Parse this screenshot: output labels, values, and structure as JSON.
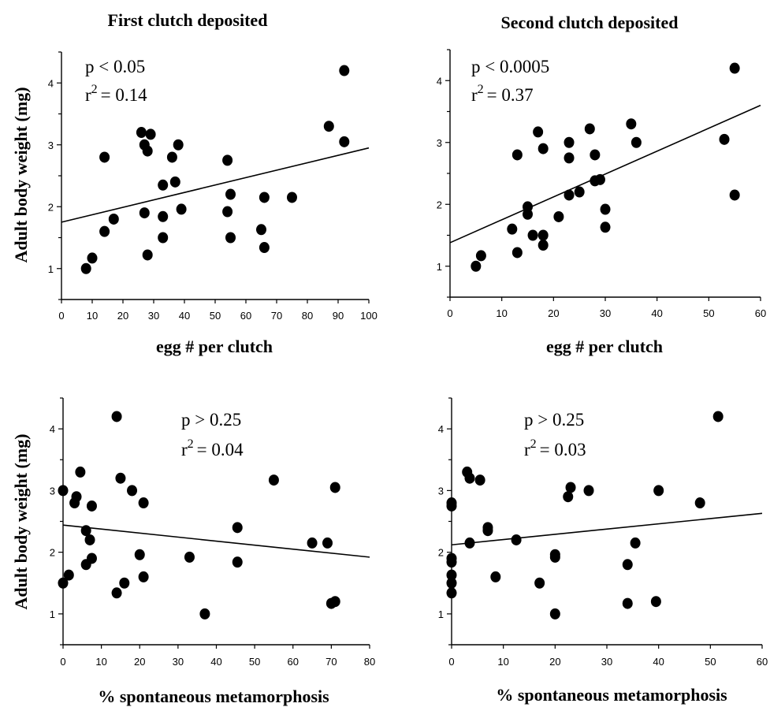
{
  "figure": {
    "ylabel_top": "Adult body weight (mg)",
    "ylabel_bottom": "Adult body weight (mg)"
  },
  "chart_data": [
    {
      "type": "scatter",
      "title": "First clutch deposited",
      "xlabel": "egg # per clutch",
      "ylabel": "Adult body weight (mg)",
      "xlim": [
        0,
        100
      ],
      "ylim": [
        0.5,
        4.5
      ],
      "xticks": [
        "0",
        "10",
        "20",
        "30",
        "40",
        "50",
        "60",
        "70",
        "80",
        "90",
        "100"
      ],
      "yticks": [
        "1",
        "2",
        "3",
        "4"
      ],
      "stats": {
        "p": "p < 0.05",
        "r2_prefix": "r",
        "r2_sup": "2",
        "r2_value": "= 0.14"
      },
      "trend": {
        "x": [
          0,
          100
        ],
        "y": [
          1.75,
          2.95
        ]
      },
      "points": [
        {
          "x": 8,
          "y": 1.0
        },
        {
          "x": 10,
          "y": 1.17
        },
        {
          "x": 14,
          "y": 2.8
        },
        {
          "x": 14,
          "y": 1.6
        },
        {
          "x": 17,
          "y": 1.8
        },
        {
          "x": 26,
          "y": 3.2
        },
        {
          "x": 27,
          "y": 3.0
        },
        {
          "x": 27,
          "y": 1.9
        },
        {
          "x": 28,
          "y": 2.9
        },
        {
          "x": 28,
          "y": 1.22
        },
        {
          "x": 29,
          "y": 3.17
        },
        {
          "x": 33,
          "y": 2.35
        },
        {
          "x": 33,
          "y": 1.84
        },
        {
          "x": 33,
          "y": 1.5
        },
        {
          "x": 36,
          "y": 2.8
        },
        {
          "x": 37,
          "y": 2.4
        },
        {
          "x": 38,
          "y": 3.0
        },
        {
          "x": 39,
          "y": 1.96
        },
        {
          "x": 54,
          "y": 2.75
        },
        {
          "x": 54,
          "y": 1.92
        },
        {
          "x": 55,
          "y": 2.2
        },
        {
          "x": 55,
          "y": 1.5
        },
        {
          "x": 65,
          "y": 1.63
        },
        {
          "x": 66,
          "y": 2.15
        },
        {
          "x": 66,
          "y": 1.34
        },
        {
          "x": 75,
          "y": 2.15
        },
        {
          "x": 87,
          "y": 3.3
        },
        {
          "x": 92,
          "y": 4.2
        },
        {
          "x": 92,
          "y": 3.05
        }
      ]
    },
    {
      "type": "scatter",
      "title": "Second clutch deposited",
      "xlabel": "egg # per clutch",
      "ylabel": "Adult body weight (mg)",
      "xlim": [
        0,
        60
      ],
      "ylim": [
        0.5,
        4.5
      ],
      "xticks": [
        "0",
        "10",
        "20",
        "30",
        "40",
        "50",
        "60"
      ],
      "yticks": [
        "1",
        "2",
        "3",
        "4"
      ],
      "stats": {
        "p": "p < 0.0005",
        "r2_prefix": "r",
        "r2_sup": "2",
        "r2_value": "= 0.37"
      },
      "trend": {
        "x": [
          0,
          60
        ],
        "y": [
          1.38,
          3.6
        ]
      },
      "points": [
        {
          "x": 5,
          "y": 1.0
        },
        {
          "x": 6,
          "y": 1.17
        },
        {
          "x": 12,
          "y": 1.6
        },
        {
          "x": 13,
          "y": 2.8
        },
        {
          "x": 13,
          "y": 1.22
        },
        {
          "x": 15,
          "y": 1.96
        },
        {
          "x": 15,
          "y": 1.84
        },
        {
          "x": 16,
          "y": 1.5
        },
        {
          "x": 17,
          "y": 3.17
        },
        {
          "x": 18,
          "y": 2.9
        },
        {
          "x": 18,
          "y": 1.5
        },
        {
          "x": 18,
          "y": 1.34
        },
        {
          "x": 21,
          "y": 1.8
        },
        {
          "x": 23,
          "y": 3.0
        },
        {
          "x": 23,
          "y": 2.75
        },
        {
          "x": 23,
          "y": 2.15
        },
        {
          "x": 25,
          "y": 2.2
        },
        {
          "x": 27,
          "y": 3.22
        },
        {
          "x": 28,
          "y": 2.8
        },
        {
          "x": 28,
          "y": 2.38
        },
        {
          "x": 29,
          "y": 2.4
        },
        {
          "x": 30,
          "y": 1.92
        },
        {
          "x": 30,
          "y": 1.63
        },
        {
          "x": 35,
          "y": 3.3
        },
        {
          "x": 36,
          "y": 3.0
        },
        {
          "x": 53,
          "y": 3.05
        },
        {
          "x": 55,
          "y": 4.2
        },
        {
          "x": 55,
          "y": 2.15
        }
      ]
    },
    {
      "type": "scatter",
      "title": "",
      "xlabel": "% spontaneous  metamorphosis",
      "ylabel": "Adult body weight (mg)",
      "xlim": [
        0,
        80
      ],
      "ylim": [
        0.5,
        4.5
      ],
      "xticks": [
        "0",
        "10",
        "20",
        "30",
        "40",
        "50",
        "60",
        "70",
        "80"
      ],
      "yticks": [
        "1",
        "2",
        "3",
        "4"
      ],
      "stats": {
        "p": "p > 0.25",
        "r2_prefix": "r",
        "r2_sup": "2",
        "r2_value": "= 0.04"
      },
      "trend": {
        "x": [
          0,
          80
        ],
        "y": [
          2.44,
          1.92
        ]
      },
      "points": [
        {
          "x": 0,
          "y": 3.0
        },
        {
          "x": 0,
          "y": 1.5
        },
        {
          "x": 1.5,
          "y": 1.63
        },
        {
          "x": 3,
          "y": 2.8
        },
        {
          "x": 3.5,
          "y": 2.9
        },
        {
          "x": 4.5,
          "y": 3.3
        },
        {
          "x": 6,
          "y": 2.35
        },
        {
          "x": 6,
          "y": 1.8
        },
        {
          "x": 7,
          "y": 2.2
        },
        {
          "x": 7.5,
          "y": 2.75
        },
        {
          "x": 7.5,
          "y": 1.9
        },
        {
          "x": 14,
          "y": 4.2
        },
        {
          "x": 14,
          "y": 1.34
        },
        {
          "x": 15,
          "y": 3.2
        },
        {
          "x": 16,
          "y": 1.5
        },
        {
          "x": 18,
          "y": 3.0
        },
        {
          "x": 20,
          "y": 1.96
        },
        {
          "x": 21,
          "y": 2.8
        },
        {
          "x": 21,
          "y": 1.6
        },
        {
          "x": 33,
          "y": 1.92
        },
        {
          "x": 37,
          "y": 1.0
        },
        {
          "x": 45.5,
          "y": 2.4
        },
        {
          "x": 45.5,
          "y": 1.84
        },
        {
          "x": 55,
          "y": 3.17
        },
        {
          "x": 65,
          "y": 2.15
        },
        {
          "x": 69,
          "y": 2.15
        },
        {
          "x": 70,
          "y": 1.17
        },
        {
          "x": 71,
          "y": 3.05
        },
        {
          "x": 71,
          "y": 1.2
        }
      ]
    },
    {
      "type": "scatter",
      "title": "",
      "xlabel": "% spontaneous  metamorphosis",
      "ylabel": "Adult body weight (mg)",
      "xlim": [
        0,
        60
      ],
      "ylim": [
        0.5,
        4.5
      ],
      "xticks": [
        "0",
        "10",
        "20",
        "30",
        "40",
        "50",
        "60"
      ],
      "yticks": [
        "1",
        "2",
        "3",
        "4"
      ],
      "stats": {
        "p": "p > 0.25",
        "r2_prefix": "r",
        "r2_sup": "2",
        "r2_value": "= 0.03"
      },
      "trend": {
        "x": [
          0,
          60
        ],
        "y": [
          2.12,
          2.63
        ]
      },
      "points": [
        {
          "x": 0,
          "y": 2.8
        },
        {
          "x": 0,
          "y": 2.75
        },
        {
          "x": 0,
          "y": 1.9
        },
        {
          "x": 0,
          "y": 1.84
        },
        {
          "x": 0,
          "y": 1.63
        },
        {
          "x": 0,
          "y": 1.5
        },
        {
          "x": 0,
          "y": 1.34
        },
        {
          "x": 3,
          "y": 3.3
        },
        {
          "x": 3.5,
          "y": 3.2
        },
        {
          "x": 3.5,
          "y": 2.15
        },
        {
          "x": 5.5,
          "y": 3.17
        },
        {
          "x": 7,
          "y": 2.4
        },
        {
          "x": 7,
          "y": 2.35
        },
        {
          "x": 8.5,
          "y": 1.6
        },
        {
          "x": 12.5,
          "y": 2.2
        },
        {
          "x": 17,
          "y": 1.5
        },
        {
          "x": 20,
          "y": 1.96
        },
        {
          "x": 20,
          "y": 1.92
        },
        {
          "x": 20,
          "y": 1.0
        },
        {
          "x": 22.5,
          "y": 2.9
        },
        {
          "x": 23,
          "y": 3.05
        },
        {
          "x": 26.5,
          "y": 3.0
        },
        {
          "x": 34,
          "y": 1.8
        },
        {
          "x": 34,
          "y": 1.17
        },
        {
          "x": 35.5,
          "y": 2.15
        },
        {
          "x": 39.5,
          "y": 1.2
        },
        {
          "x": 40,
          "y": 3.0
        },
        {
          "x": 48,
          "y": 2.8
        },
        {
          "x": 51.5,
          "y": 4.2
        }
      ]
    }
  ]
}
